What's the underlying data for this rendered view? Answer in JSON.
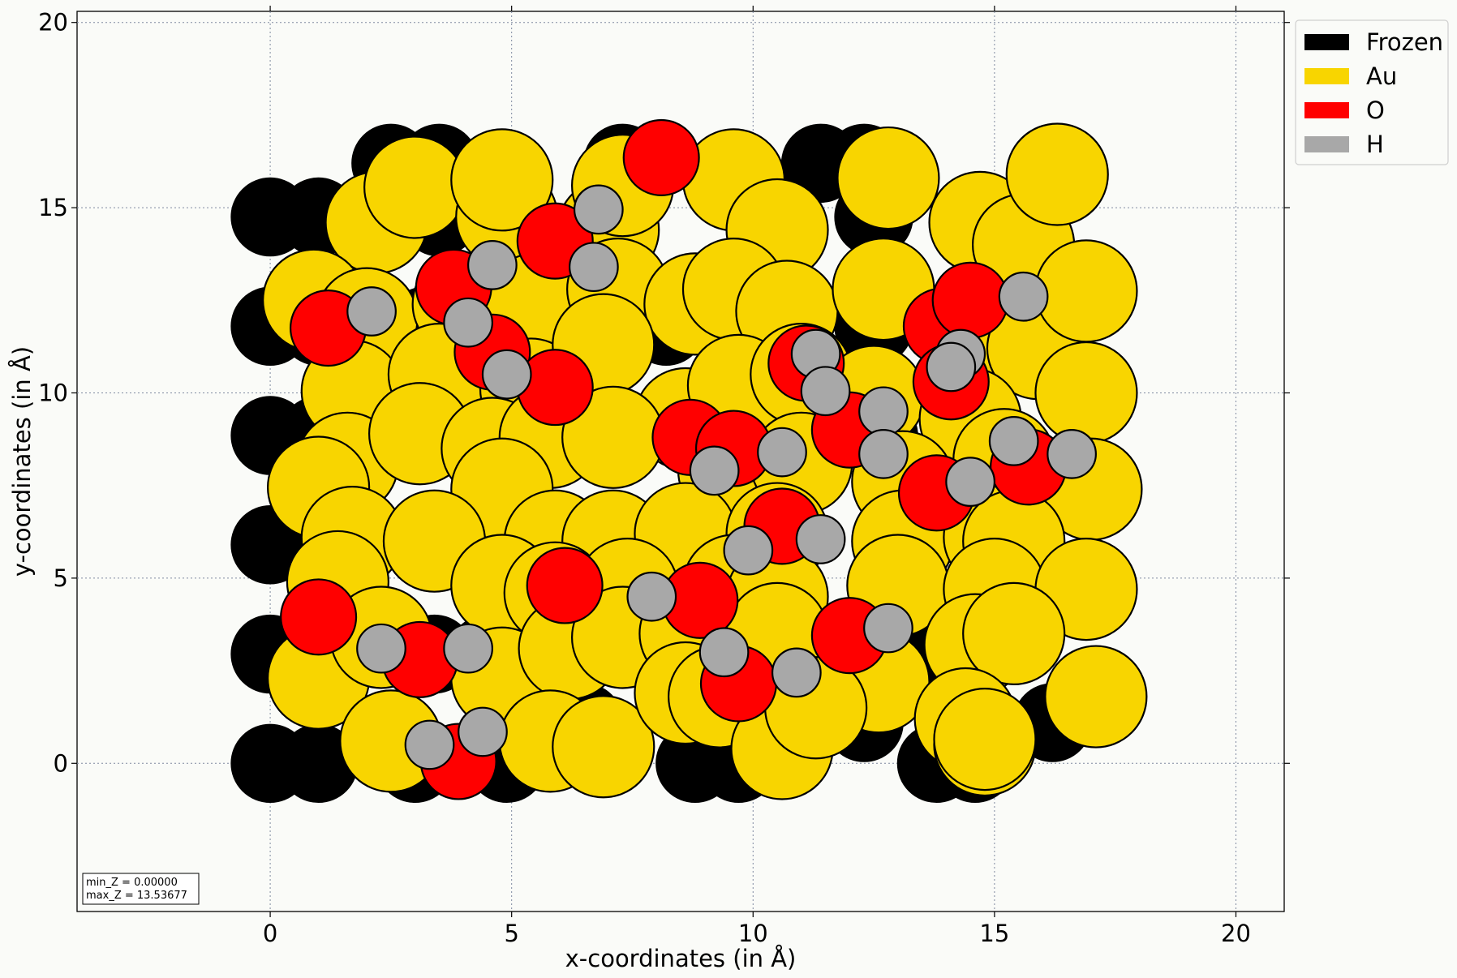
{
  "chart_data": {
    "type": "scatter",
    "xlabel": "x-coordinates (in Å)",
    "ylabel": "y-coordinates (in Å)",
    "xlim": [
      -4,
      21
    ],
    "ylim": [
      -4,
      20.3
    ],
    "xticks": [
      0,
      5,
      10,
      15,
      20
    ],
    "yticks": [
      0,
      5,
      10,
      15,
      20
    ],
    "grid": true,
    "legend_position": "outside-top-right",
    "info_box": {
      "lines": [
        "min_Z = 0.00000",
        "max_Z = 13.53677"
      ]
    },
    "series": [
      {
        "name": "Frozen",
        "color": "#000000",
        "radius": 0.8,
        "points": [
          [
            0,
            14.75
          ],
          [
            1,
            14.75
          ],
          [
            2.5,
            14.75
          ],
          [
            3.5,
            14.75
          ],
          [
            5,
            14.75
          ],
          [
            0,
            11.8
          ],
          [
            1,
            11.8
          ],
          [
            3.2,
            11.8
          ],
          [
            4.5,
            11.8
          ],
          [
            0,
            8.85
          ],
          [
            1,
            8.85
          ],
          [
            3.4,
            8.85
          ],
          [
            4.5,
            8.85
          ],
          [
            0,
            5.9
          ],
          [
            1,
            5.9
          ],
          [
            3.4,
            5.9
          ],
          [
            4.5,
            5.9
          ],
          [
            0,
            2.95
          ],
          [
            1,
            2.95
          ],
          [
            3.4,
            2.95
          ],
          [
            4.5,
            2.95
          ],
          [
            0,
            0
          ],
          [
            1,
            0
          ],
          [
            3,
            0
          ],
          [
            4.9,
            0
          ],
          [
            2.5,
            16.2
          ],
          [
            3.5,
            16.2
          ],
          [
            7.3,
            16.2
          ],
          [
            11.4,
            16.2
          ],
          [
            12.3,
            16.2
          ],
          [
            16.2,
            16.2
          ],
          [
            9.7,
            0
          ],
          [
            8.8,
            0
          ],
          [
            13.8,
            0
          ],
          [
            14.6,
            0
          ],
          [
            12.3,
            1.1
          ],
          [
            16.2,
            1.1
          ],
          [
            6.5,
            1.1
          ],
          [
            13.5,
            2.95
          ],
          [
            8.4,
            2.95
          ],
          [
            13,
            5.9
          ],
          [
            8.5,
            5.9
          ],
          [
            12.6,
            8.85
          ],
          [
            12.5,
            11.8
          ],
          [
            15.5,
            14.75
          ],
          [
            12.5,
            14.75
          ],
          [
            8.2,
            11.8
          ]
        ]
      },
      {
        "name": "Au",
        "color": "#f8d500",
        "radius": 1.05,
        "points": [
          [
            2.2,
            14.6
          ],
          [
            3,
            15.55
          ],
          [
            4.9,
            14.75
          ],
          [
            4.8,
            15.75
          ],
          [
            7,
            14.4
          ],
          [
            7.3,
            15.6
          ],
          [
            9.6,
            15.75
          ],
          [
            10.5,
            14.4
          ],
          [
            12.8,
            15.8
          ],
          [
            14.7,
            14.6
          ],
          [
            15.6,
            14
          ],
          [
            16.3,
            15.9
          ],
          [
            0.9,
            12.5
          ],
          [
            2,
            12
          ],
          [
            4,
            12.4
          ],
          [
            5.5,
            12.4
          ],
          [
            7.2,
            12.8
          ],
          [
            8.8,
            12.4
          ],
          [
            9.6,
            12.8
          ],
          [
            10.7,
            12.2
          ],
          [
            12.7,
            12.8
          ],
          [
            14.8,
            11.6
          ],
          [
            15.9,
            11.2
          ],
          [
            16.9,
            12.75
          ],
          [
            1.7,
            10.05
          ],
          [
            3.5,
            10.5
          ],
          [
            5.4,
            10.1
          ],
          [
            6.9,
            11.3
          ],
          [
            8.6,
            9.3
          ],
          [
            9.7,
            10.2
          ],
          [
            11,
            10.5
          ],
          [
            12.5,
            9.9
          ],
          [
            14.5,
            9.3
          ],
          [
            16.9,
            10
          ],
          [
            1.6,
            8.1
          ],
          [
            3.1,
            8.9
          ],
          [
            4.6,
            8.5
          ],
          [
            5.8,
            8.8
          ],
          [
            7.1,
            8.8
          ],
          [
            9.5,
            7.9
          ],
          [
            11,
            8.1
          ],
          [
            13.1,
            7.6
          ],
          [
            15.2,
            8.2
          ],
          [
            17,
            7.4
          ],
          [
            1,
            7.45
          ],
          [
            4.8,
            7.4
          ],
          [
            1.7,
            6.1
          ],
          [
            3.4,
            6
          ],
          [
            5.9,
            6
          ],
          [
            7.1,
            6
          ],
          [
            8.6,
            6.2
          ],
          [
            10.5,
            6.2
          ],
          [
            13.1,
            6
          ],
          [
            15,
            6.1
          ],
          [
            15.4,
            6
          ],
          [
            1.4,
            4.9
          ],
          [
            4.8,
            4.8
          ],
          [
            5.9,
            4.6
          ],
          [
            7.4,
            4.7
          ],
          [
            9.6,
            4.8
          ],
          [
            10.5,
            4.5
          ],
          [
            13,
            4.8
          ],
          [
            15,
            4.7
          ],
          [
            16.9,
            4.7
          ],
          [
            1,
            2.3
          ],
          [
            2.3,
            3.4
          ],
          [
            4.8,
            2.3
          ],
          [
            6.2,
            3.1
          ],
          [
            7.3,
            3.4
          ],
          [
            8.7,
            3.5
          ],
          [
            10.5,
            3.5
          ],
          [
            12.6,
            2.2
          ],
          [
            14.6,
            3.2
          ],
          [
            15.4,
            3.5
          ],
          [
            17.1,
            1.8
          ],
          [
            2.5,
            0.6
          ],
          [
            5.8,
            0.6
          ],
          [
            6.9,
            0.45
          ],
          [
            8.6,
            1.9
          ],
          [
            9.3,
            1.8
          ],
          [
            10.6,
            0.4
          ],
          [
            14.4,
            1.2
          ],
          [
            14.8,
            0.5
          ],
          [
            14.8,
            0.65
          ],
          [
            11.3,
            1.5
          ]
        ]
      },
      {
        "name": "O",
        "color": "#ff0000",
        "radius": 0.78,
        "points": [
          [
            8.1,
            16.35
          ],
          [
            5.9,
            14.1
          ],
          [
            3.8,
            12.85
          ],
          [
            1.2,
            11.75
          ],
          [
            4.6,
            11.1
          ],
          [
            5.9,
            10.15
          ],
          [
            8.7,
            8.8
          ],
          [
            9.6,
            8.5
          ],
          [
            11.1,
            10.8
          ],
          [
            12,
            9
          ],
          [
            13.9,
            11.8
          ],
          [
            14.5,
            12.5
          ],
          [
            14.1,
            10.3
          ],
          [
            13.8,
            7.3
          ],
          [
            15.7,
            8
          ],
          [
            10.6,
            6.4
          ],
          [
            6.1,
            4.8
          ],
          [
            8.9,
            4.4
          ],
          [
            12,
            3.45
          ],
          [
            1,
            3.95
          ],
          [
            3.1,
            2.8
          ],
          [
            9.7,
            2.15
          ],
          [
            3.9,
            0.05
          ]
        ]
      },
      {
        "name": "H",
        "color": "#a8a8a8",
        "radius": 0.5,
        "points": [
          [
            6.8,
            14.95
          ],
          [
            6.7,
            13.4
          ],
          [
            4.6,
            13.45
          ],
          [
            2.1,
            12.2
          ],
          [
            4.1,
            11.9
          ],
          [
            4.9,
            10.5
          ],
          [
            11.3,
            11.05
          ],
          [
            11.5,
            10.05
          ],
          [
            12.7,
            9.5
          ],
          [
            14.3,
            11.05
          ],
          [
            14.1,
            10.7
          ],
          [
            15.6,
            12.6
          ],
          [
            9.2,
            7.9
          ],
          [
            10.6,
            8.4
          ],
          [
            12.7,
            8.35
          ],
          [
            14.5,
            7.6
          ],
          [
            15.4,
            8.7
          ],
          [
            16.6,
            8.35
          ],
          [
            9.9,
            5.75
          ],
          [
            11.4,
            6.05
          ],
          [
            7.9,
            4.5
          ],
          [
            12.8,
            3.65
          ],
          [
            9.4,
            3
          ],
          [
            10.9,
            2.45
          ],
          [
            2.3,
            3.1
          ],
          [
            4.1,
            3.1
          ],
          [
            4.4,
            0.85
          ],
          [
            3.3,
            0.5
          ]
        ]
      }
    ]
  }
}
